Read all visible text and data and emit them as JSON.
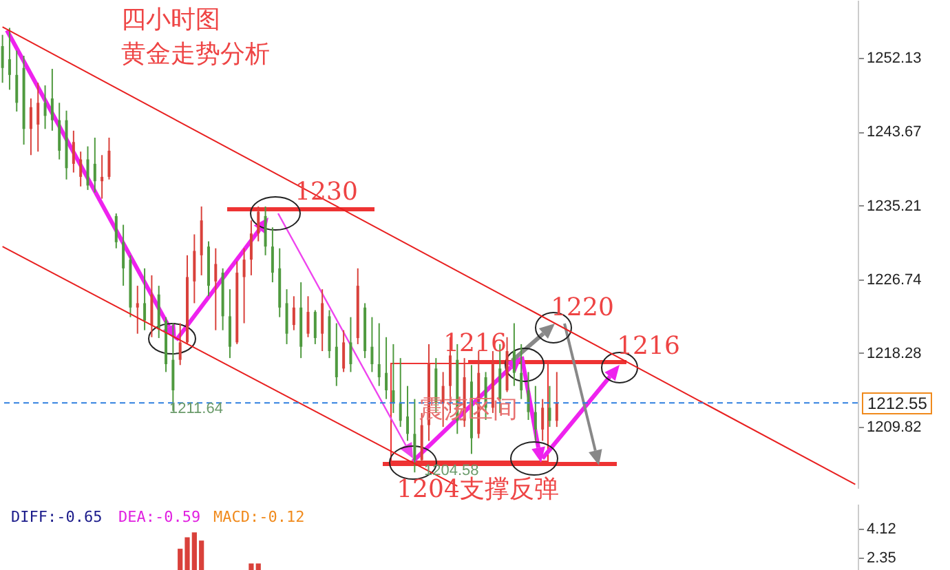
{
  "chart_data": [
    {
      "type": "candlestick",
      "title": "四小时图",
      "subtitle": "黄金走势分析",
      "categories": [
        null,
        null,
        null,
        null,
        null,
        null,
        null,
        null,
        null,
        null,
        null,
        null,
        null,
        null,
        null,
        null,
        null,
        null,
        null,
        null,
        null,
        null,
        null,
        null,
        null,
        null,
        null,
        null,
        null,
        null,
        null,
        null,
        null,
        null,
        null,
        null,
        null,
        null,
        null,
        null,
        null,
        null,
        null,
        null,
        null,
        null,
        null,
        null,
        null,
        null,
        null,
        null,
        null,
        null,
        null,
        null,
        null,
        null,
        null,
        null,
        null,
        null,
        null,
        null,
        null,
        null,
        null,
        null,
        null,
        null,
        null,
        null,
        null,
        null,
        null,
        null,
        null,
        null,
        null,
        null,
        null,
        null,
        null,
        null,
        null,
        null,
        null,
        null,
        null,
        null,
        null,
        null,
        null,
        null,
        null,
        null,
        null,
        null,
        null,
        null,
        null,
        null,
        null,
        null,
        null,
        null,
        null,
        null,
        null,
        null,
        null,
        null,
        null,
        null,
        null,
        null,
        null,
        null,
        null,
        null,
        null
      ],
      "ohlc": [
        [
          1253.5,
          1254.8,
          1249.3,
          1251.0
        ],
        [
          1252.0,
          1255.6,
          1248.5,
          1250.2
        ],
        [
          1250.2,
          1253.0,
          1246.0,
          1247.0
        ],
        [
          1251.0,
          1252.4,
          1242.2,
          1244.0
        ],
        [
          1244.0,
          1247.5,
          1241.0,
          1246.5
        ],
        [
          1244.5,
          1249.3,
          1241.4,
          1247.0
        ],
        [
          1247.0,
          1249.0,
          1244.0,
          1245.5
        ],
        [
          1247.5,
          1250.9,
          1243.8,
          1245.0
        ],
        [
          1245.0,
          1247.0,
          1240.5,
          1241.5
        ],
        [
          1245.0,
          1246.1,
          1238.2,
          1239.5
        ],
        [
          1240.0,
          1243.8,
          1239.0,
          1242.5
        ],
        [
          1238.5,
          1241.4,
          1237.4,
          1240.5
        ],
        [
          1240.5,
          1242.0,
          1237.0,
          1237.5
        ],
        [
          1240.0,
          1243.0,
          1236.7,
          1238.0
        ],
        [
          1238.0,
          1241.0,
          1236.0,
          1238.5
        ],
        [
          1238.5,
          1243.0,
          1238.2,
          1241.5
        ],
        [
          1234.0,
          1234.3,
          1230.3,
          1231.0
        ],
        [
          1231.0,
          1233.0,
          1226.0,
          1228.0
        ],
        [
          1229.0,
          1229.5,
          1222.4,
          1223.5
        ],
        [
          1223.5,
          1226.0,
          1220.5,
          1224.0
        ],
        [
          1224.0,
          1228.0,
          1220.9,
          1222.0
        ],
        [
          1221.5,
          1227.2,
          1220.1,
          1225.0
        ],
        [
          1225.0,
          1226.0,
          1220.0,
          1221.0
        ],
        [
          1222.0,
          1222.4,
          1216.1,
          1217.0
        ],
        [
          1217.5,
          1221.7,
          1211.64,
          1214.0
        ],
        [
          1217.5,
          1221.7,
          1216.9,
          1219.5
        ],
        [
          1219.5,
          1229.5,
          1219.3,
          1227.0
        ],
        [
          1226.5,
          1231.9,
          1224.0,
          1230.0
        ],
        [
          1229.5,
          1235.1,
          1227.2,
          1233.5
        ],
        [
          1230.5,
          1231.1,
          1224.8,
          1226.0
        ],
        [
          1226.5,
          1230.3,
          1220.9,
          1228.5
        ],
        [
          1227.5,
          1228.0,
          1220.9,
          1222.5
        ],
        [
          1222.5,
          1225.6,
          1217.7,
          1219.0
        ],
        [
          1219.5,
          1228.8,
          1219.3,
          1227.5
        ],
        [
          1227.0,
          1230.3,
          1221.7,
          1229.0
        ],
        [
          1229.0,
          1233.5,
          1227.2,
          1232.0
        ],
        [
          1232.0,
          1235.1,
          1231.1,
          1234.5
        ],
        [
          1234.0,
          1235.1,
          1229.5,
          1230.5
        ],
        [
          1230.5,
          1232.7,
          1226.4,
          1227.5
        ],
        [
          1228.0,
          1230.3,
          1222.4,
          1223.5
        ],
        [
          1224.0,
          1225.6,
          1219.3,
          1220.5
        ],
        [
          1221.5,
          1224.8,
          1220.9,
          1223.5
        ],
        [
          1223.5,
          1226.4,
          1217.7,
          1219.0
        ],
        [
          1220.5,
          1224.8,
          1220.1,
          1223.0
        ],
        [
          1223.0,
          1223.2,
          1219.3,
          1220.0
        ],
        [
          1220.5,
          1225.6,
          1218.5,
          1224.0
        ],
        [
          1222.5,
          1223.2,
          1217.7,
          1218.5
        ],
        [
          1219.0,
          1221.7,
          1214.5,
          1215.5
        ],
        [
          1216.5,
          1220.9,
          1216.1,
          1219.5
        ],
        [
          1219.5,
          1222.4,
          1216.1,
          1217.0
        ],
        [
          1220.0,
          1228.0,
          1219.3,
          1226.0
        ],
        [
          1223.5,
          1224.0,
          1217.7,
          1218.5
        ],
        [
          1219.0,
          1222.4,
          1216.1,
          1217.0
        ],
        [
          1217.0,
          1221.7,
          1214.5,
          1215.5
        ],
        [
          1216.0,
          1220.1,
          1213.0,
          1214.0
        ],
        [
          1214.0,
          1219.3,
          1211.4,
          1212.5
        ],
        [
          1212.5,
          1217.7,
          1209.8,
          1210.5
        ],
        [
          1211.0,
          1214.5,
          1208.2,
          1209.0
        ],
        [
          1209.0,
          1213.0,
          1204.58,
          1206.0
        ],
        [
          1206.0,
          1211.4,
          1205.9,
          1210.0
        ],
        [
          1210.0,
          1219.3,
          1208.2,
          1217.0
        ],
        [
          1216.5,
          1217.7,
          1211.4,
          1212.5
        ],
        [
          1212.5,
          1216.1,
          1209.8,
          1214.5
        ],
        [
          1214.5,
          1220.1,
          1211.4,
          1218.0
        ],
        [
          1217.5,
          1219.3,
          1209.0,
          1210.5
        ],
        [
          1210.5,
          1217.7,
          1209.8,
          1215.5
        ],
        [
          1215.0,
          1216.9,
          1206.7,
          1208.5
        ],
        [
          1209.0,
          1218.5,
          1208.5,
          1216.0
        ],
        [
          1215.5,
          1216.1,
          1210.6,
          1212.0
        ],
        [
          1212.0,
          1218.5,
          1211.4,
          1217.0
        ],
        [
          1216.5,
          1219.3,
          1211.4,
          1213.0
        ],
        [
          1214.0,
          1220.1,
          1213.8,
          1218.5
        ],
        [
          1218.5,
          1221.7,
          1214.5,
          1216.0
        ],
        [
          1216.0,
          1219.3,
          1213.0,
          1214.0
        ],
        [
          1214.0,
          1216.1,
          1210.6,
          1211.5
        ],
        [
          1211.5,
          1214.5,
          1208.2,
          1209.5
        ],
        [
          1209.5,
          1213.0,
          1208.2,
          1212.0
        ],
        [
          1212.0,
          1214.5,
          1209.8,
          1210.5
        ],
        [
          1210.5,
          1216.1,
          1209.8,
          1212.55
        ],
        null,
        null,
        null,
        null,
        null,
        null,
        null,
        null,
        null,
        null,
        null,
        null,
        null,
        null,
        null,
        null,
        null,
        null,
        null,
        null,
        null,
        null,
        null,
        null,
        null,
        null,
        null,
        null,
        null,
        null,
        null,
        null,
        null,
        null,
        null,
        null,
        null,
        null,
        null,
        null,
        null,
        null
      ],
      "series": [
        {
          "type": "line",
          "color": "#e82020",
          "values": [
            1255.7,
            null,
            null,
            null,
            null,
            null,
            null,
            null,
            null,
            null,
            null,
            null,
            null,
            null,
            null,
            null,
            null,
            null,
            null,
            null,
            null,
            null,
            null,
            null,
            null,
            null,
            null,
            null,
            null,
            null,
            null,
            null,
            null,
            null,
            null,
            null,
            null,
            null,
            null,
            null,
            null,
            null,
            null,
            null,
            null,
            null,
            null,
            null,
            null,
            null,
            null,
            null,
            null,
            null,
            null,
            null,
            null,
            null,
            null,
            null,
            null,
            null,
            null,
            null,
            null,
            null,
            null,
            null,
            null,
            null,
            null,
            null,
            null,
            null,
            null,
            null,
            null,
            null,
            null,
            null,
            null,
            null,
            null,
            null,
            null,
            null,
            null,
            null,
            null,
            null,
            null,
            null,
            null,
            null,
            null,
            null,
            null,
            null,
            null,
            null,
            null,
            null,
            null,
            null,
            null,
            null,
            null,
            null,
            null,
            null,
            null,
            null,
            null,
            null,
            null,
            null,
            null,
            null,
            null,
            null,
            1203.2
          ]
        },
        {
          "type": "line",
          "color": "#e82020",
          "values": [
            1230.5,
            null,
            null,
            null,
            null,
            null,
            null,
            null,
            null,
            null,
            null,
            null,
            null,
            null,
            null,
            null,
            null,
            null,
            null,
            null,
            null,
            null,
            null,
            null,
            null,
            null,
            null,
            null,
            null,
            null,
            null,
            null,
            null,
            null,
            null,
            null,
            null,
            null,
            null,
            null,
            null,
            null,
            null,
            null,
            null,
            null,
            null,
            null,
            null,
            null,
            null,
            null,
            null,
            null,
            null,
            null,
            null,
            null,
            null,
            null,
            null,
            null,
            null,
            null,
            1203.0,
            null,
            null,
            null,
            null,
            null,
            null,
            null,
            null,
            null,
            null,
            null,
            null,
            null,
            null,
            null,
            null,
            null,
            null,
            null,
            null,
            null,
            null,
            null,
            null,
            null,
            null,
            null,
            null,
            null,
            null,
            null,
            null,
            null,
            null,
            null,
            null,
            null,
            null,
            null,
            null,
            null,
            null,
            null,
            null,
            null,
            null,
            null,
            null,
            null,
            null,
            null,
            null,
            null,
            null,
            null,
            null
          ]
        }
      ],
      "ylim": [
        1202.7,
        1258.8
      ],
      "yticks": [
        1209.82,
        1218.28,
        1226.74,
        1235.21,
        1243.67,
        1252.13
      ],
      "tick_labels": "y",
      "ref_lines": [
        {
          "axis": "y",
          "value": 1212.55,
          "label": "1212.55",
          "color": "#2f7fe0",
          "line_style": "dashed"
        }
      ],
      "annotations": [
        "1230",
        "1220",
        "1216",
        "1216",
        "震荡区间",
        "1204支撑反弹",
        "1211.64",
        "1204.58"
      ]
    },
    {
      "type": "bar",
      "color": "#d9413b",
      "tick_labels": "y",
      "categories": [
        null,
        null,
        null,
        null,
        null,
        null,
        null,
        null,
        null,
        null,
        null,
        null,
        null,
        null,
        null,
        null,
        null,
        null,
        null,
        null,
        null,
        null,
        null,
        null,
        null,
        null,
        null,
        null,
        null,
        null,
        null,
        null,
        null,
        null,
        null,
        null,
        null,
        null,
        null,
        null,
        null,
        null,
        null,
        null,
        null,
        null,
        null,
        null,
        null,
        null,
        null,
        null,
        null,
        null,
        null,
        null,
        null,
        null,
        null,
        null,
        null,
        null,
        null,
        null,
        null,
        null,
        null,
        null,
        null,
        null,
        null,
        null,
        null,
        null,
        null,
        null,
        null,
        null,
        null,
        null,
        null,
        null,
        null,
        null,
        null,
        null,
        null,
        null,
        null,
        null,
        null,
        null,
        null,
        null,
        null,
        null,
        null,
        null,
        null,
        null,
        null,
        null,
        null,
        null,
        null,
        null,
        null,
        null,
        null,
        null,
        null,
        null,
        null,
        null,
        null,
        null,
        null,
        null,
        null,
        null,
        null
      ],
      "values": [
        null,
        null,
        null,
        null,
        null,
        null,
        null,
        null,
        null,
        null,
        null,
        null,
        null,
        null,
        null,
        null,
        null,
        null,
        null,
        null,
        null,
        null,
        null,
        null,
        null,
        2.9,
        3.6,
        3.9,
        3.4,
        null,
        null,
        null,
        null,
        null,
        null,
        2.0,
        2.0,
        null,
        null,
        null,
        null,
        null,
        null,
        null,
        null,
        null,
        null,
        null,
        null,
        null,
        null,
        null,
        null,
        null,
        null,
        null,
        null,
        null,
        null,
        null,
        null,
        null,
        null,
        null,
        null,
        null,
        null,
        null,
        null,
        null,
        null,
        null,
        null,
        null,
        null,
        null,
        null,
        null,
        null,
        null,
        null,
        null,
        null,
        null,
        null,
        null,
        null,
        null,
        null,
        null,
        null,
        null,
        null,
        null,
        null,
        null,
        null,
        null,
        null,
        null,
        null,
        null,
        null,
        null,
        null,
        null,
        null,
        null,
        null,
        null,
        null,
        null,
        null,
        null,
        null,
        null,
        null,
        null,
        null,
        null,
        null
      ],
      "ylim": [
        1.6,
        5.64
      ],
      "yticks": [
        4.12,
        2.35
      ],
      "annotations": [
        "DIFF:-0.65",
        "DEA:-0.59",
        "MACD:-0.12"
      ]
    }
  ]
}
